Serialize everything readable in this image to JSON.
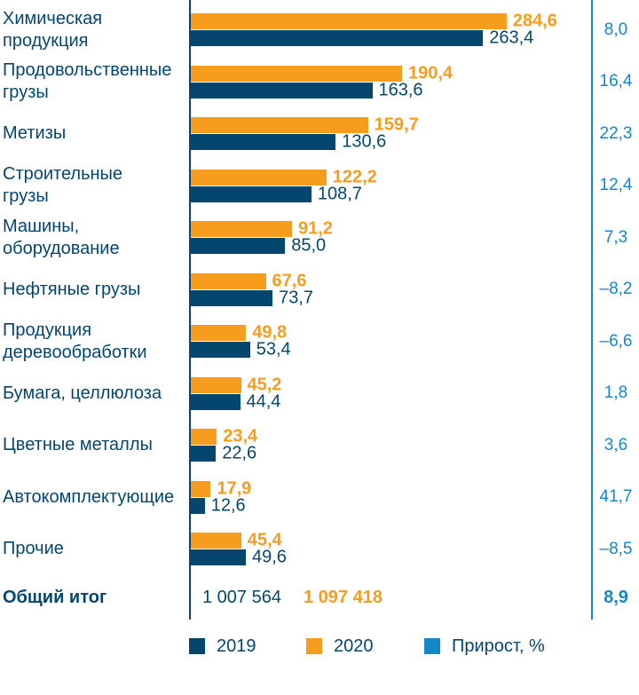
{
  "colors": {
    "navy": "#04466E",
    "orange": "#F89C1E",
    "blue": "#1487CB",
    "background": "#FFFFFF"
  },
  "chart_data": {
    "type": "bar",
    "orientation": "horizontal",
    "grid": false,
    "legend_position": "bottom",
    "xlim": [
      0,
      284.6
    ],
    "categories": [
      "Химическая\nпродукция",
      "Продовольственные\nгрузы",
      "Метизы",
      "Строительные\nгрузы",
      "Машины,\nоборудование",
      "Нефтяные грузы",
      "Продукция\nдеревообработки",
      "Бумага, целлюлоза",
      "Цветные металлы",
      "Автокомплектующие",
      "Прочие"
    ],
    "series": [
      {
        "name": "2020",
        "color": "#F89C1E",
        "values": [
          284.6,
          190.4,
          159.7,
          122.2,
          91.2,
          67.6,
          49.8,
          45.2,
          23.4,
          17.9,
          45.4
        ],
        "labels": [
          "284,6",
          "190,4",
          "159,7",
          "122,2",
          "91,2",
          "67,6",
          "49,8",
          "45,2",
          "23,4",
          "17,9",
          "45,4"
        ]
      },
      {
        "name": "2019",
        "color": "#04466E",
        "values": [
          263.4,
          163.6,
          130.6,
          108.7,
          85.0,
          73.7,
          53.4,
          44.4,
          22.6,
          12.6,
          49.6
        ],
        "labels": [
          "263,4",
          "163,6",
          "130,6",
          "108,7",
          "85,0",
          "73,7",
          "53,4",
          "44,4",
          "22,6",
          "12,6",
          "49,6"
        ]
      }
    ],
    "growth": {
      "name": "Прирост, %",
      "color": "#1487CB",
      "values": [
        8.0,
        16.4,
        22.3,
        12.4,
        7.3,
        -8.2,
        -6.6,
        1.8,
        3.6,
        41.7,
        -8.5
      ],
      "labels": [
        "8,0",
        "16,4",
        "22,3",
        "12,4",
        "7,3",
        "–8,2",
        "–6,6",
        "1,8",
        "3,6",
        "41,7",
        "–8,5"
      ]
    },
    "total": {
      "label": "Общий итог",
      "value_2019": "1 007 564",
      "value_2020": "1 097 418",
      "growth": "8,9"
    },
    "legend": [
      {
        "label": "2019",
        "color": "#04466E"
      },
      {
        "label": "2020",
        "color": "#F89C1E"
      },
      {
        "label": "Прирост, %",
        "color": "#1487CB"
      }
    ]
  }
}
